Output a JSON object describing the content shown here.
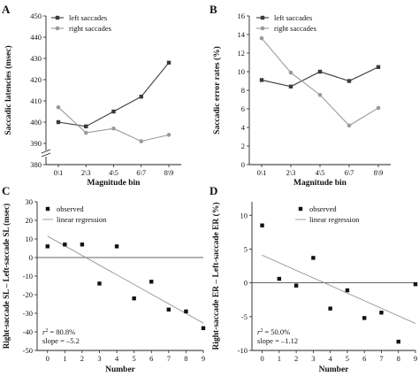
{
  "chart_data": [
    {
      "panel": "A",
      "type": "line",
      "categories": [
        "0\\1",
        "2\\3",
        "4\\5",
        "6\\7",
        "8\\9"
      ],
      "series": [
        {
          "name": "left saccades",
          "values": [
            400,
            398,
            405,
            412,
            428
          ],
          "color": "#3a3a3a",
          "marker": "square"
        },
        {
          "name": "right saccades",
          "values": [
            407,
            395,
            397,
            391,
            394
          ],
          "color": "#9a9a9a",
          "marker": "circle"
        }
      ],
      "xlabel": "Magnitude bin",
      "ylabel": "Saccadic latencies (msec)",
      "yticks": [
        380,
        390,
        400,
        410,
        420,
        430,
        440,
        450
      ],
      "ylim": [
        380,
        450
      ],
      "axis_break": true,
      "legend": "top-left"
    },
    {
      "panel": "B",
      "type": "line",
      "categories": [
        "0\\1",
        "2\\3",
        "4\\5",
        "6\\7",
        "8\\9"
      ],
      "series": [
        {
          "name": "left saccades",
          "values": [
            9.1,
            8.4,
            10.0,
            9.0,
            10.5
          ],
          "color": "#3a3a3a",
          "marker": "square"
        },
        {
          "name": "right saccades",
          "values": [
            13.6,
            9.9,
            7.5,
            4.2,
            6.1
          ],
          "color": "#9a9a9a",
          "marker": "circle"
        }
      ],
      "xlabel": "Magnitude bin",
      "ylabel": "Saccadic error rates (%)",
      "yticks": [
        0,
        2,
        4,
        6,
        8,
        10,
        12,
        14,
        16
      ],
      "ylim": [
        0,
        16
      ],
      "legend": "top-left"
    },
    {
      "panel": "C",
      "type": "scatter",
      "x": [
        0,
        1,
        2,
        3,
        4,
        5,
        6,
        7,
        8,
        9
      ],
      "y": [
        6,
        7,
        7,
        -14,
        6,
        -22,
        -13,
        -28,
        -29,
        -38
      ],
      "regression": {
        "x": [
          0,
          9
        ],
        "y": [
          11.5,
          -35.3
        ]
      },
      "legend_labels": {
        "observed": "observed",
        "regression": "linear regression"
      },
      "annotation": {
        "r2_label": "r",
        "r2_value": "= 80.8%",
        "slope": "slope = –5.2"
      },
      "xlabel": "Number",
      "ylabel": "Right-saccade SL – Left-saccade SL (msec)",
      "xticks": [
        0,
        1,
        2,
        3,
        4,
        5,
        6,
        7,
        8,
        9
      ],
      "yticks": [
        -50,
        -40,
        -30,
        -20,
        -10,
        0,
        10,
        20,
        30
      ],
      "ylim": [
        -50,
        30
      ],
      "xlim": [
        -0.6,
        9
      ],
      "zero_line": true
    },
    {
      "panel": "D",
      "type": "scatter",
      "x": [
        0,
        1,
        2,
        3,
        4,
        5,
        6,
        7,
        8,
        9
      ],
      "y": [
        8.5,
        0.6,
        -0.4,
        3.7,
        -3.8,
        -1.1,
        -5.2,
        -4.4,
        -8.7,
        -0.2
      ],
      "regression": {
        "x": [
          0,
          9
        ],
        "y": [
          4.1,
          -6.0
        ]
      },
      "legend_labels": {
        "observed": "observed",
        "regression": "linear regression"
      },
      "annotation": {
        "r2_label": "r",
        "r2_value": "= 50.0%",
        "slope": "slope = –1.12"
      },
      "xlabel": "Number",
      "ylabel": "Right-saccade ER – Left-saccade ER (%)",
      "xticks": [
        0,
        1,
        2,
        3,
        4,
        5,
        6,
        7,
        8,
        9
      ],
      "yticks": [
        -10,
        -5,
        0,
        5,
        10
      ],
      "ylim": [
        -10,
        12
      ],
      "xlim": [
        -0.6,
        9
      ],
      "zero_line": true
    }
  ]
}
